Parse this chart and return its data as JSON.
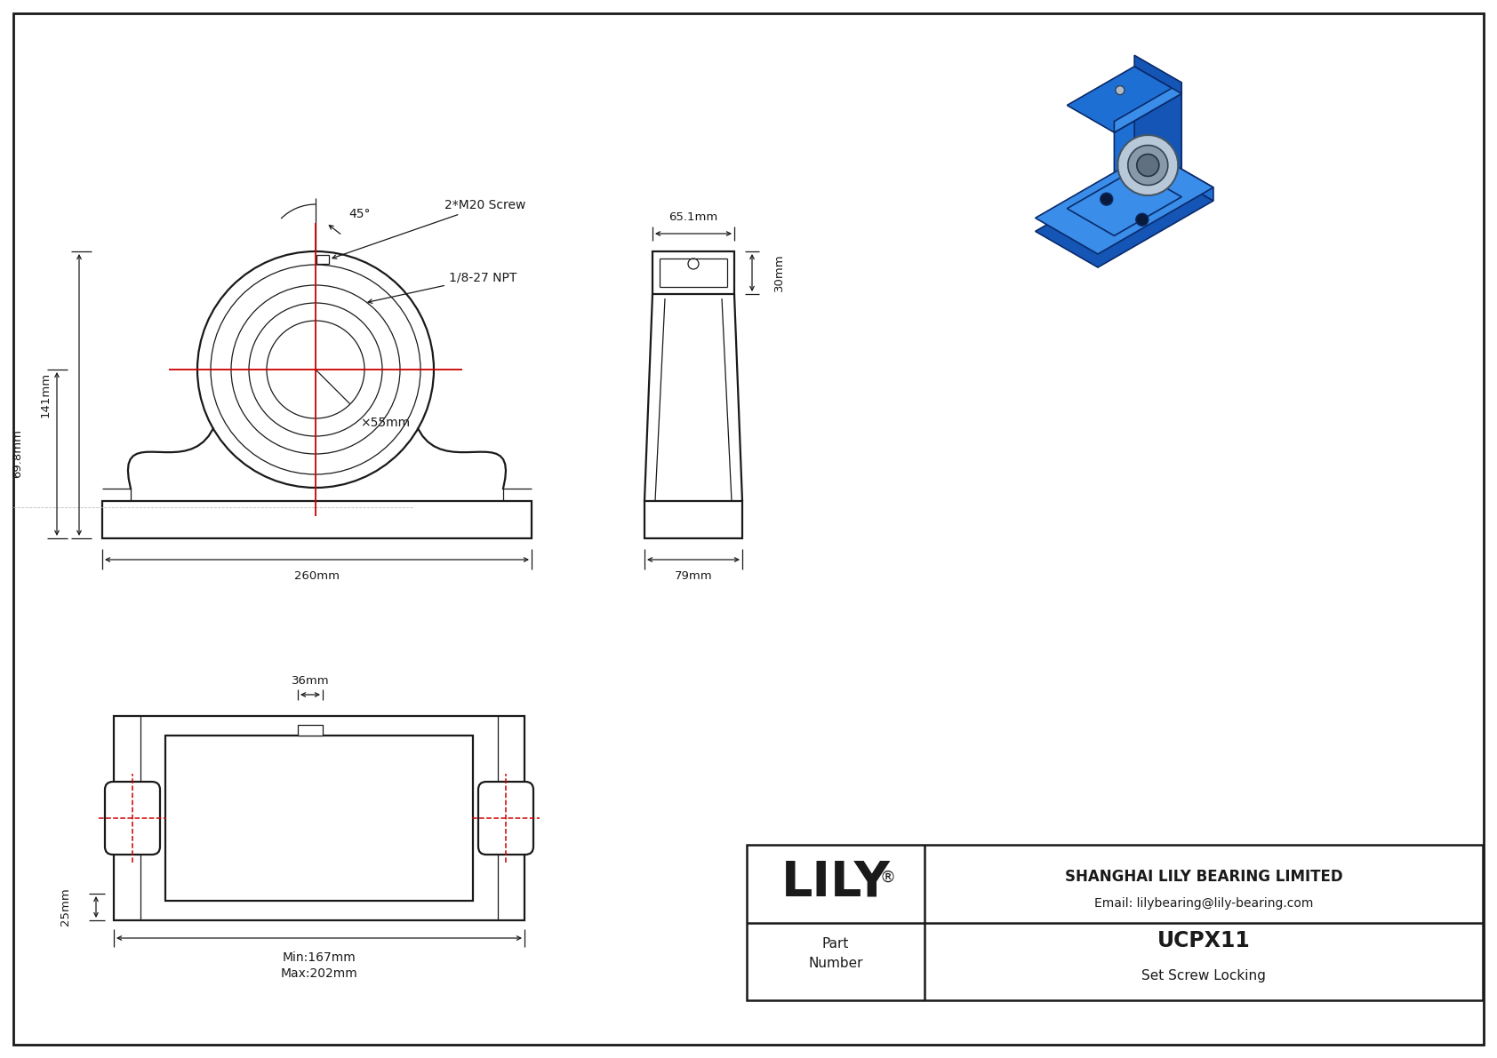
{
  "bg_color": "#ffffff",
  "line_color": "#1a1a1a",
  "red_color": "#cc0000",
  "company": "SHANGHAI LILY BEARING LIMITED",
  "email": "Email: lilybearing@lily-bearing.com",
  "part_number": "UCPX11",
  "locking": "Set Screw Locking",
  "logo": "LILY",
  "dims": {
    "height_total": "141mm",
    "height_center": "69.8mm",
    "width_total": "260mm",
    "bore": "×55mm",
    "angle": "45°",
    "screw": "2*M20 Screw",
    "npt": "1/8-27 NPT",
    "side_height": "30mm",
    "side_width": "65.1mm",
    "side_base": "79mm",
    "top_width": "36mm",
    "top_height": "25mm",
    "min_len": "Min:167mm",
    "max_len": "Max:202mm"
  },
  "iso_blue_dark": "#1555b5",
  "iso_blue_mid": "#1e6fd4",
  "iso_blue_light": "#3a8de8",
  "iso_edge": "#0a2a6a"
}
